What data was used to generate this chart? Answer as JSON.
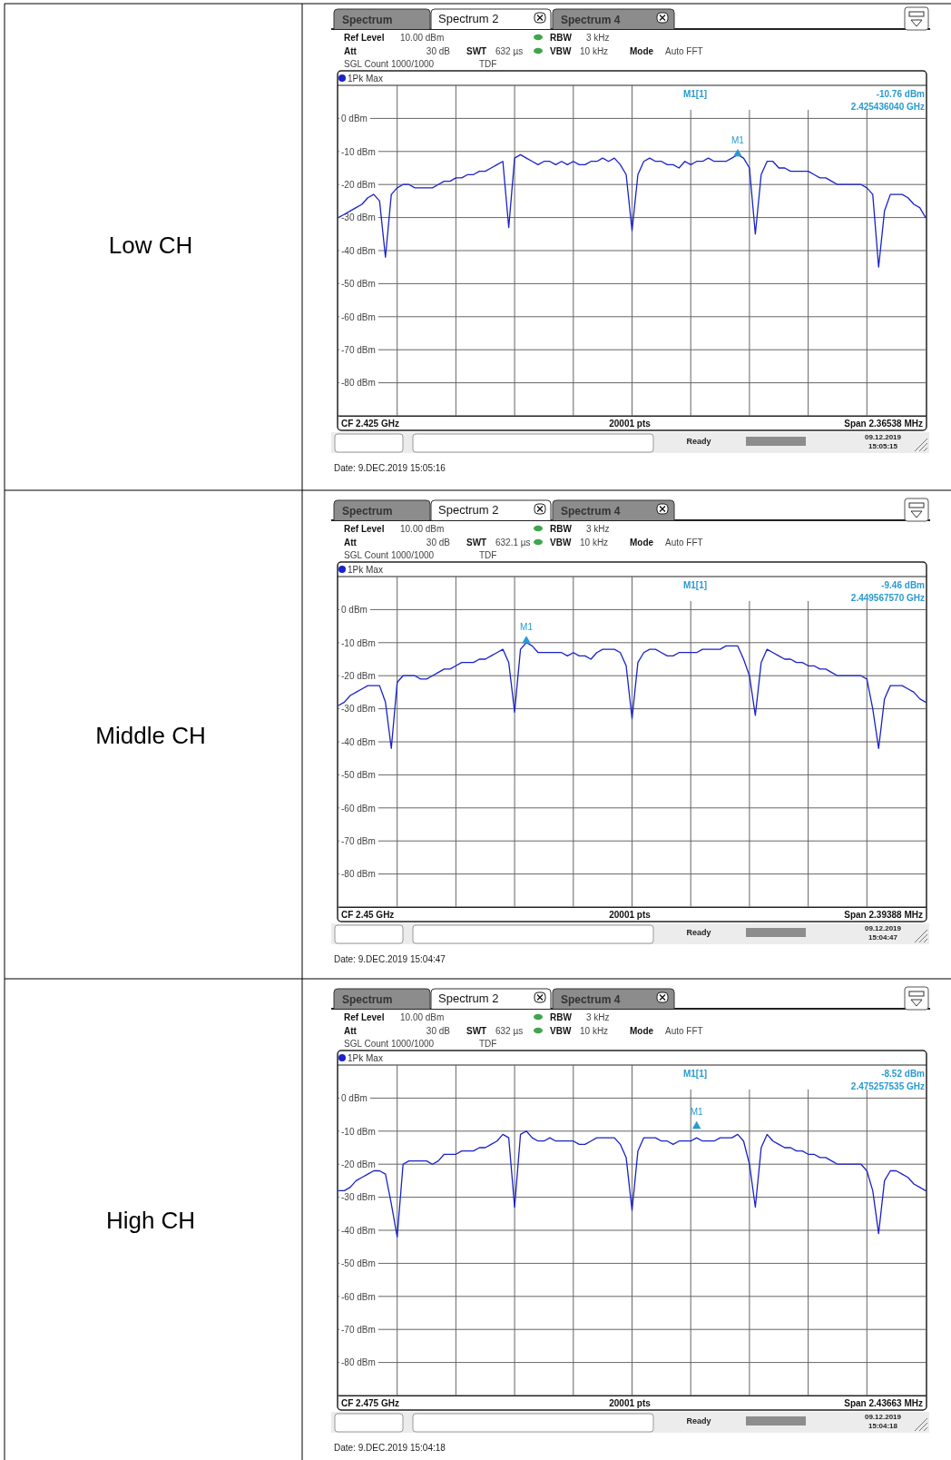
{
  "chart_data": [
    {
      "type": "line",
      "ylabel": "Low CH",
      "ylim": [
        -90,
        10
      ],
      "yticks": [
        {
          "value": 0,
          "label": "0 dBm"
        },
        {
          "value": -10,
          "label": "-10 dBm"
        },
        {
          "value": -20,
          "label": "-20 dBm"
        },
        {
          "value": -30,
          "label": "-30 dBm"
        },
        {
          "value": -40,
          "label": "-40 dBm"
        },
        {
          "value": -50,
          "label": "-50 dBm"
        },
        {
          "value": -60,
          "label": "-60 dBm"
        },
        {
          "value": -70,
          "label": "-70 dBm"
        },
        {
          "value": -80,
          "label": "-80 dBm"
        }
      ],
      "tick_labels": "y",
      "grid": true,
      "legend": "top left",
      "categories": [
        null,
        null,
        null,
        null,
        null,
        null,
        null,
        null,
        null,
        null,
        null,
        null,
        null,
        null,
        null,
        null,
        null,
        null,
        null,
        null,
        null,
        null,
        null,
        null,
        null,
        null,
        null,
        null,
        null,
        null,
        null,
        null,
        null,
        null,
        null,
        null,
        null,
        null,
        null,
        null,
        null,
        null,
        null,
        null,
        null,
        null,
        null,
        null,
        null,
        null,
        null,
        null,
        null,
        null,
        null,
        null,
        null,
        null,
        null,
        null,
        null,
        null,
        null,
        null,
        null,
        null,
        null,
        null,
        null,
        null,
        null,
        null,
        null,
        null,
        null,
        null,
        null,
        null,
        null,
        null,
        null,
        null,
        null,
        null,
        null,
        null,
        null,
        null,
        null,
        null,
        null,
        null,
        null,
        null,
        null,
        null,
        null,
        null,
        null,
        null,
        null
      ],
      "series": [
        {
          "name": "1Pk Max",
          "color": "#1a22c8",
          "values": [
            -30,
            -29,
            -28,
            -27,
            -26,
            -24,
            -23,
            -25,
            -42,
            -23,
            -21,
            -20,
            -20,
            -21,
            -21,
            -21,
            -21,
            -20,
            -19,
            -19,
            -18,
            -18,
            -17,
            -17,
            -16,
            -16,
            -15,
            -14,
            -13,
            -33,
            -12,
            -11,
            -12,
            -13,
            -14,
            -13,
            -13,
            -14,
            -13,
            -14,
            -13,
            -14,
            -14,
            -13,
            -13,
            -12,
            -13,
            -12,
            -14,
            -17,
            -34,
            -17,
            -13,
            -12,
            -13,
            -13,
            -14,
            -14,
            -15,
            -13,
            -14,
            -13,
            -13,
            -12,
            -13,
            -13,
            -13,
            -12,
            -11,
            -12,
            -15,
            -35,
            -17,
            -13,
            -13,
            -15,
            -15,
            -16,
            -16,
            -16,
            -16,
            -17,
            -18,
            -18,
            -19,
            -20,
            -20,
            -20,
            -20,
            -20,
            -21,
            -23,
            -45,
            -28,
            -23,
            -23,
            -23,
            -24,
            -26,
            -27,
            -30
          ]
        },
        {
          "name": "M1",
          "type": "scatter",
          "marker": "triangle",
          "color": "#2a9ad0",
          "values": [
            null,
            null,
            null,
            null,
            null,
            null,
            null,
            null,
            null,
            null,
            null,
            null,
            null,
            null,
            null,
            null,
            null,
            null,
            null,
            null,
            null,
            null,
            null,
            null,
            null,
            null,
            null,
            null,
            null,
            null,
            null,
            null,
            null,
            null,
            null,
            null,
            null,
            null,
            null,
            null,
            null,
            null,
            null,
            null,
            null,
            null,
            null,
            null,
            null,
            null,
            null,
            null,
            null,
            null,
            null,
            null,
            null,
            null,
            null,
            null,
            null,
            null,
            null,
            null,
            null,
            null,
            null,
            null,
            -10.76,
            null,
            null,
            null,
            null,
            null,
            null,
            null,
            null,
            null,
            null,
            null,
            null,
            null,
            null,
            null,
            null,
            null,
            null,
            null,
            null,
            null,
            null,
            null,
            null,
            null,
            null,
            null,
            null,
            null,
            null,
            null,
            null
          ]
        }
      ],
      "annotations": [
        "Spectrum",
        "Spectrum 2",
        "Spectrum 4",
        "Ref Level",
        "10.00 dBm",
        "Att",
        "30 dB",
        "SWT",
        "632 µs",
        "RBW",
        "3 kHz",
        "VBW",
        "10 kHz",
        "Mode",
        "Auto FFT",
        "SGL Count 1000/1000",
        "TDF",
        "M1[1]",
        "-10.76 dBm",
        "2.425436040 GHz",
        "CF 2.425 GHz",
        "20001 pts",
        "Span 2.36538 MHz",
        "Ready",
        "09.12.2019",
        "15:05:15",
        "Date: 9.DEC.2019 15:05:16"
      ]
    },
    {
      "type": "line",
      "ylabel": "Middle CH",
      "ylim": [
        -90,
        10
      ],
      "yticks": [
        {
          "value": 0,
          "label": "0 dBm"
        },
        {
          "value": -10,
          "label": "-10 dBm"
        },
        {
          "value": -20,
          "label": "-20 dBm"
        },
        {
          "value": -30,
          "label": "-30 dBm"
        },
        {
          "value": -40,
          "label": "-40 dBm"
        },
        {
          "value": -50,
          "label": "-50 dBm"
        },
        {
          "value": -60,
          "label": "-60 dBm"
        },
        {
          "value": -70,
          "label": "-70 dBm"
        },
        {
          "value": -80,
          "label": "-80 dBm"
        }
      ],
      "tick_labels": "y",
      "grid": true,
      "legend": "top left",
      "categories": [
        null,
        null,
        null,
        null,
        null,
        null,
        null,
        null,
        null,
        null,
        null,
        null,
        null,
        null,
        null,
        null,
        null,
        null,
        null,
        null,
        null,
        null,
        null,
        null,
        null,
        null,
        null,
        null,
        null,
        null,
        null,
        null,
        null,
        null,
        null,
        null,
        null,
        null,
        null,
        null,
        null,
        null,
        null,
        null,
        null,
        null,
        null,
        null,
        null,
        null,
        null,
        null,
        null,
        null,
        null,
        null,
        null,
        null,
        null,
        null,
        null,
        null,
        null,
        null,
        null,
        null,
        null,
        null,
        null,
        null,
        null,
        null,
        null,
        null,
        null,
        null,
        null,
        null,
        null,
        null,
        null,
        null,
        null,
        null,
        null,
        null,
        null,
        null,
        null,
        null,
        null,
        null,
        null,
        null,
        null,
        null,
        null,
        null,
        null,
        null,
        null
      ],
      "series": [
        {
          "name": "1Pk Max",
          "color": "#1a22c8",
          "values": [
            -29,
            -28,
            -26,
            -25,
            -24,
            -23,
            -23,
            -23,
            -28,
            -42,
            -22,
            -20,
            -20,
            -20,
            -21,
            -21,
            -20,
            -19,
            -18,
            -18,
            -17,
            -16,
            -16,
            -16,
            -15,
            -15,
            -14,
            -13,
            -12,
            -16,
            -31,
            -12,
            -10,
            -11,
            -13,
            -13,
            -13,
            -13,
            -13,
            -14,
            -13,
            -14,
            -14,
            -15,
            -13,
            -12,
            -12,
            -12,
            -13,
            -17,
            -33,
            -16,
            -13,
            -12,
            -12,
            -13,
            -14,
            -14,
            -13,
            -13,
            -13,
            -13,
            -12,
            -12,
            -12,
            -12,
            -11,
            -11,
            -11,
            -15,
            -20,
            -32,
            -16,
            -12,
            -13,
            -14,
            -15,
            -15,
            -16,
            -16,
            -17,
            -17,
            -18,
            -18,
            -19,
            -20,
            -20,
            -20,
            -20,
            -20,
            -21,
            -30,
            -42,
            -27,
            -23,
            -23,
            -23,
            -24,
            -25,
            -27,
            -28
          ]
        },
        {
          "name": "M1",
          "type": "scatter",
          "marker": "triangle",
          "color": "#2a9ad0",
          "values": [
            null,
            null,
            null,
            null,
            null,
            null,
            null,
            null,
            null,
            null,
            null,
            null,
            null,
            null,
            null,
            null,
            null,
            null,
            null,
            null,
            null,
            null,
            null,
            null,
            null,
            null,
            null,
            null,
            null,
            null,
            null,
            null,
            -9.46,
            null,
            null,
            null,
            null,
            null,
            null,
            null,
            null,
            null,
            null,
            null,
            null,
            null,
            null,
            null,
            null,
            null,
            null,
            null,
            null,
            null,
            null,
            null,
            null,
            null,
            null,
            null,
            null,
            null,
            null,
            null,
            null,
            null,
            null,
            null,
            null,
            null,
            null,
            null,
            null,
            null,
            null,
            null,
            null,
            null,
            null,
            null,
            null,
            null,
            null,
            null,
            null,
            null,
            null,
            null,
            null,
            null,
            null,
            null,
            null,
            null,
            null,
            null,
            null,
            null,
            null,
            null,
            null
          ]
        }
      ],
      "annotations": [
        "Spectrum",
        "Spectrum 2",
        "Spectrum 4",
        "Ref Level",
        "10.00 dBm",
        "Att",
        "30 dB",
        "SWT",
        "632.1 µs",
        "RBW",
        "3 kHz",
        "VBW",
        "10 kHz",
        "Mode",
        "Auto FFT",
        "SGL Count 1000/1000",
        "TDF",
        "M1[1]",
        "-9.46 dBm",
        "2.449567570 GHz",
        "CF 2.45 GHz",
        "20001 pts",
        "Span 2.39388 MHz",
        "Ready",
        "09.12.2019",
        "15:04:47",
        "Date: 9.DEC.2019 15:04:47"
      ]
    },
    {
      "type": "line",
      "ylabel": "High CH",
      "ylim": [
        -90,
        10
      ],
      "yticks": [
        {
          "value": 0,
          "label": "0 dBm"
        },
        {
          "value": -10,
          "label": "-10 dBm"
        },
        {
          "value": -20,
          "label": "-20 dBm"
        },
        {
          "value": -30,
          "label": "-30 dBm"
        },
        {
          "value": -40,
          "label": "-40 dBm"
        },
        {
          "value": -50,
          "label": "-50 dBm"
        },
        {
          "value": -60,
          "label": "-60 dBm"
        },
        {
          "value": -70,
          "label": "-70 dBm"
        },
        {
          "value": -80,
          "label": "-80 dBm"
        }
      ],
      "tick_labels": "y",
      "grid": true,
      "legend": "top left",
      "categories": [
        null,
        null,
        null,
        null,
        null,
        null,
        null,
        null,
        null,
        null,
        null,
        null,
        null,
        null,
        null,
        null,
        null,
        null,
        null,
        null,
        null,
        null,
        null,
        null,
        null,
        null,
        null,
        null,
        null,
        null,
        null,
        null,
        null,
        null,
        null,
        null,
        null,
        null,
        null,
        null,
        null,
        null,
        null,
        null,
        null,
        null,
        null,
        null,
        null,
        null,
        null,
        null,
        null,
        null,
        null,
        null,
        null,
        null,
        null,
        null,
        null,
        null,
        null,
        null,
        null,
        null,
        null,
        null,
        null,
        null,
        null,
        null,
        null,
        null,
        null,
        null,
        null,
        null,
        null,
        null,
        null,
        null,
        null,
        null,
        null,
        null,
        null,
        null,
        null,
        null,
        null,
        null,
        null,
        null,
        null,
        null,
        null,
        null,
        null,
        null,
        null
      ],
      "series": [
        {
          "name": "1Pk Max",
          "color": "#1a22c8",
          "values": [
            -28,
            -28,
            -27,
            -25,
            -24,
            -23,
            -22,
            -22,
            -23,
            -32,
            -42,
            -20,
            -19,
            -19,
            -19,
            -19,
            -20,
            -19,
            -17,
            -17,
            -17,
            -16,
            -16,
            -16,
            -15,
            -15,
            -14,
            -13,
            -11,
            -12,
            -33,
            -11,
            -10,
            -12,
            -13,
            -13,
            -12,
            -13,
            -13,
            -13,
            -13,
            -14,
            -14,
            -13,
            -12,
            -12,
            -12,
            -12,
            -14,
            -18,
            -34,
            -16,
            -12,
            -12,
            -12,
            -13,
            -13,
            -14,
            -13,
            -13,
            -13,
            -12,
            -13,
            -13,
            -13,
            -12,
            -12,
            -12,
            -11,
            -13,
            -20,
            -33,
            -15,
            -11,
            -13,
            -14,
            -15,
            -15,
            -16,
            -16,
            -17,
            -17,
            -18,
            -18,
            -19,
            -20,
            -20,
            -20,
            -20,
            -20,
            -22,
            -28,
            -41,
            -25,
            -22,
            -22,
            -23,
            -24,
            -26,
            -27,
            -28
          ]
        },
        {
          "name": "M1",
          "type": "scatter",
          "marker": "triangle",
          "color": "#2a9ad0",
          "values": [
            null,
            null,
            null,
            null,
            null,
            null,
            null,
            null,
            null,
            null,
            null,
            null,
            null,
            null,
            null,
            null,
            null,
            null,
            null,
            null,
            null,
            null,
            null,
            null,
            null,
            null,
            null,
            null,
            null,
            null,
            null,
            null,
            null,
            null,
            null,
            null,
            null,
            null,
            null,
            null,
            null,
            null,
            null,
            null,
            null,
            null,
            null,
            null,
            null,
            null,
            null,
            null,
            null,
            null,
            null,
            null,
            null,
            null,
            null,
            null,
            null,
            -8.52,
            null,
            null,
            null,
            null,
            null,
            null,
            null,
            null,
            null,
            null,
            null,
            null,
            null,
            null,
            null,
            null,
            null,
            null,
            null,
            null,
            null,
            null,
            null,
            null,
            null,
            null,
            null,
            null,
            null,
            null,
            null,
            null,
            null,
            null,
            null,
            null,
            null,
            null,
            null
          ]
        }
      ],
      "annotations": [
        "Spectrum",
        "Spectrum 2",
        "Spectrum 4",
        "Ref Level",
        "10.00 dBm",
        "Att",
        "30 dB",
        "SWT",
        "632 µs",
        "RBW",
        "3 kHz",
        "VBW",
        "10 kHz",
        "Mode",
        "Auto FFT",
        "SGL Count 1000/1000",
        "TDF",
        "M1[1]",
        "-8.52 dBm",
        "2.475257535 GHz",
        "CF 2.475 GHz",
        "20001 pts",
        "Span 2.43663 MHz",
        "Ready",
        "09.12.2019",
        "15:04:18",
        "Date: 9.DEC.2019 15:04:18"
      ]
    }
  ]
}
